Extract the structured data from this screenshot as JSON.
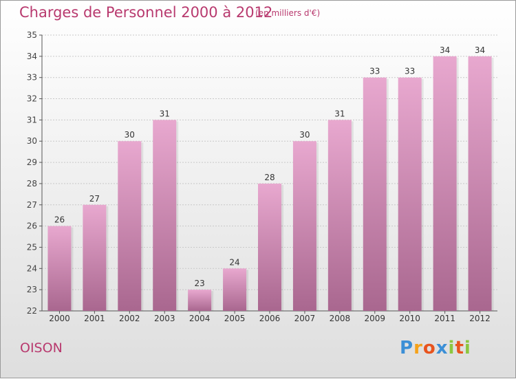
{
  "title": "Charges de Personnel 2000 à 2012",
  "unit_note": "(en milliers d'€)",
  "commune": "OISON",
  "logo": {
    "letters": [
      "P",
      "r",
      "o",
      "x",
      "i",
      "t",
      "i"
    ],
    "colors": [
      "#3b8fd6",
      "#f5a21a",
      "#e8541e",
      "#3b8fd6",
      "#8cc63f",
      "#e8541e",
      "#8cc63f"
    ]
  },
  "colors": {
    "title": "#b8396e",
    "bar_top": "#e8a8cf",
    "bar_bottom": "#a9678f",
    "grid": "#c8c8c8"
  },
  "chart_data": {
    "type": "bar",
    "title": "Charges de Personnel 2000 à 2012",
    "subtitle": "(en milliers d'€)",
    "categories": [
      "2000",
      "2001",
      "2002",
      "2003",
      "2004",
      "2005",
      "2006",
      "2007",
      "2008",
      "2009",
      "2010",
      "2011",
      "2012"
    ],
    "values": [
      26,
      27,
      30,
      31,
      23,
      24,
      28,
      30,
      31,
      33,
      33,
      34,
      34
    ],
    "yticks": [
      22,
      23,
      24,
      25,
      26,
      27,
      28,
      29,
      30,
      31,
      32,
      33,
      34,
      35
    ],
    "ylim": [
      22,
      35
    ],
    "grid": true,
    "legend": "none"
  }
}
